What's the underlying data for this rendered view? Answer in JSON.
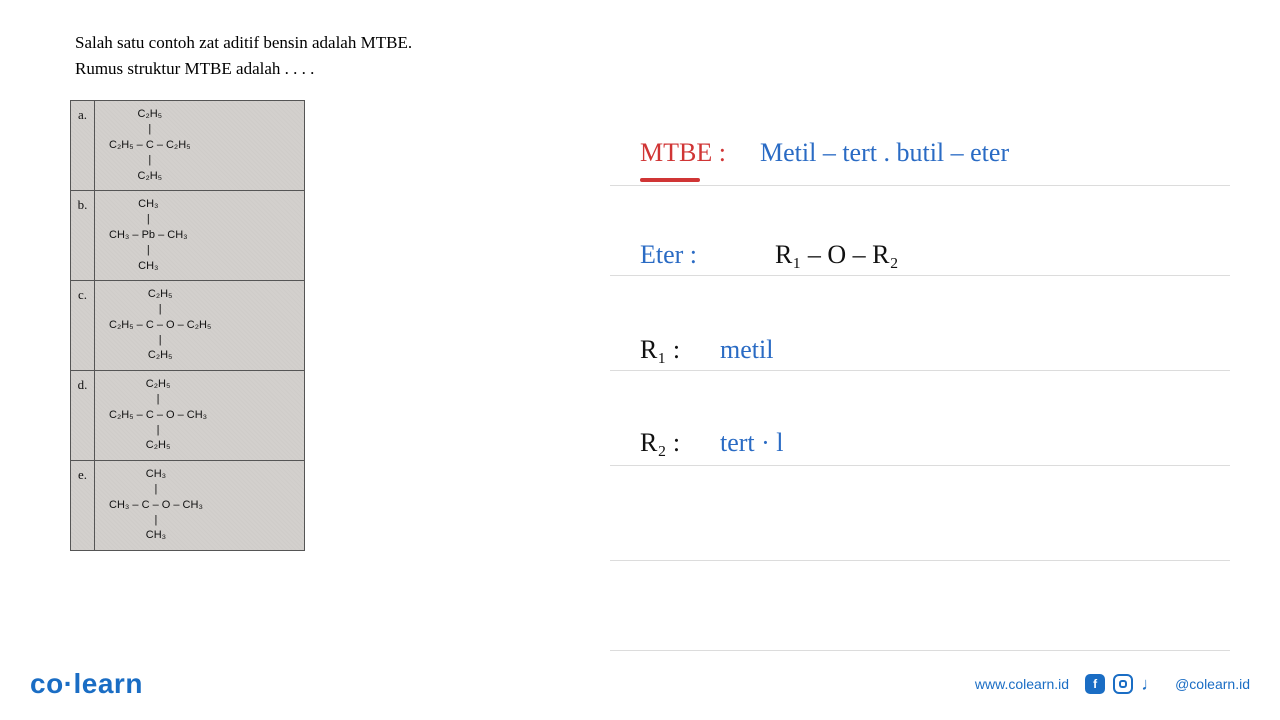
{
  "question": {
    "line1": "Salah satu contoh zat aditif bensin adalah MTBE.",
    "line2": "Rumus struktur MTBE adalah . . . ."
  },
  "options": [
    {
      "label": "a.",
      "top": "C₂H₅",
      "mid": "C₂H₅ – C – C₂H₅",
      "bot": "C₂H₅"
    },
    {
      "label": "b.",
      "top": "CH₃",
      "mid": "CH₃ – Pb – CH₃",
      "bot": "CH₃"
    },
    {
      "label": "c.",
      "top": "C₂H₅",
      "mid": "C₂H₅ – C – O – C₂H₅",
      "bot": "C₂H₅"
    },
    {
      "label": "d.",
      "top": "C₂H₅",
      "mid": "C₂H₅ – C – O – CH₃",
      "bot": "C₂H₅"
    },
    {
      "label": "e.",
      "top": "CH₃",
      "mid": "CH₃ – C – O – CH₃",
      "bot": "CH₃"
    }
  ],
  "handwriting": {
    "mtbe_label": "MTBE :",
    "mtbe_text": "Metil – tert . butil – eter",
    "eter_label": "Eter  :",
    "eter_text": "R₁ – O – R₂",
    "r1_label": "R₁ :",
    "r1_text": "metil",
    "r2_label": "R₂ :",
    "r2_text": "tert · l",
    "colors": {
      "blue": "#2a6bc4",
      "red": "#d03535",
      "black": "#111111"
    }
  },
  "ruled_lines_y": [
    65,
    155,
    250,
    345,
    440,
    530
  ],
  "footer": {
    "brand": "co·learn",
    "url": "www.colearn.id",
    "handle": "@colearn.id"
  }
}
